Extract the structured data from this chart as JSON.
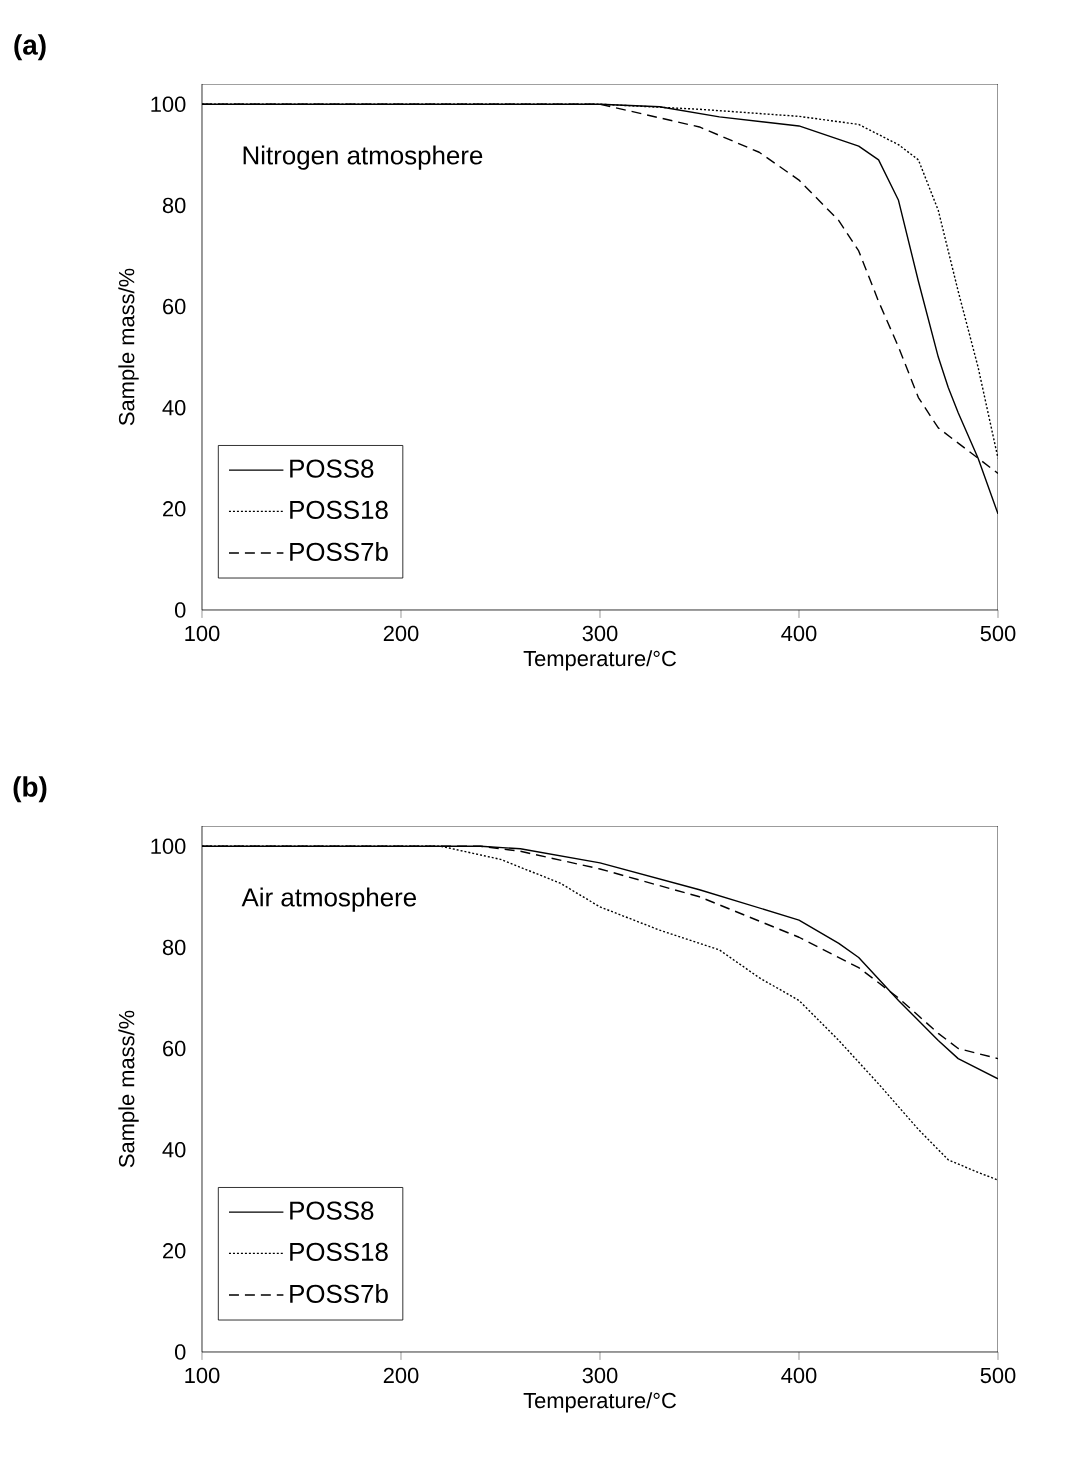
{
  "chart_data": [
    {
      "type": "line",
      "title": "**(a)**",
      "xlabel": "Temperature/°C",
      "ylabel": "Sample mass/%",
      "annotations": [
        "Nitrogen atmosphere"
      ],
      "xlim": [
        100,
        500
      ],
      "ylim": [
        0,
        104
      ],
      "xticks": [
        100,
        200,
        300,
        400,
        500
      ],
      "yticks": [
        0,
        20,
        40,
        60,
        80,
        100
      ],
      "legend": "bottom left",
      "grid": false,
      "series": [
        {
          "name": "POSS8",
          "color": "#000000",
          "line_style": "solid",
          "x": [
            100,
            200,
            300,
            330,
            360,
            400,
            430,
            440,
            450,
            460,
            470,
            475,
            480,
            490,
            500
          ],
          "values": [
            100,
            100,
            100,
            99.5,
            97.5,
            95.7,
            91.7,
            89,
            81,
            65,
            50,
            44,
            39,
            30,
            19
          ]
        },
        {
          "name": "POSS18",
          "color": "#000000",
          "line_style": "dotted",
          "x": [
            100,
            200,
            300,
            350,
            400,
            430,
            450,
            460,
            470,
            480,
            490,
            500
          ],
          "values": [
            100,
            100,
            100,
            99,
            97.6,
            96,
            92,
            89,
            79,
            63,
            48,
            30
          ]
        },
        {
          "name": "POSS7b",
          "color": "#000000",
          "line_style": "dashed",
          "x": [
            100,
            200,
            300,
            350,
            380,
            400,
            420,
            430,
            440,
            450,
            460,
            470,
            480,
            490,
            500
          ],
          "values": [
            100,
            100,
            100,
            95.5,
            90.5,
            85,
            77,
            71,
            61,
            52,
            42,
            36,
            33,
            30,
            27
          ]
        }
      ]
    },
    {
      "type": "line",
      "title": "**(b)**",
      "xlabel": "Temperature/°C",
      "ylabel": "Sample mass/%",
      "annotations": [
        "Air atmosphere"
      ],
      "xlim": [
        100,
        500
      ],
      "ylim": [
        0,
        104
      ],
      "xticks": [
        100,
        200,
        300,
        400,
        500
      ],
      "yticks": [
        0,
        20,
        40,
        60,
        80,
        100
      ],
      "legend": "bottom left",
      "grid": false,
      "series": [
        {
          "name": "POSS8",
          "color": "#000000",
          "line_style": "solid",
          "x": [
            100,
            200,
            240,
            260,
            300,
            350,
            400,
            420,
            430,
            450,
            470,
            480,
            500
          ],
          "values": [
            100,
            100,
            100,
            99.5,
            96.7,
            91.4,
            85.4,
            80.8,
            78,
            69.5,
            61.6,
            58,
            54
          ]
        },
        {
          "name": "POSS18",
          "color": "#000000",
          "line_style": "dotted",
          "x": [
            100,
            200,
            220,
            250,
            280,
            300,
            330,
            360,
            380,
            400,
            420,
            440,
            460,
            475,
            490,
            500
          ],
          "values": [
            100,
            100,
            100,
            97.4,
            92.7,
            88,
            83.4,
            79.5,
            74,
            69.5,
            61.6,
            53,
            44,
            38,
            35.5,
            34
          ]
        },
        {
          "name": "POSS7b",
          "color": "#000000",
          "line_style": "dashed",
          "x": [
            100,
            200,
            240,
            260,
            300,
            350,
            400,
            430,
            450,
            470,
            480,
            500
          ],
          "values": [
            100,
            100,
            100,
            99,
            95.5,
            90,
            82,
            76,
            70,
            63,
            60,
            58
          ]
        }
      ]
    }
  ]
}
